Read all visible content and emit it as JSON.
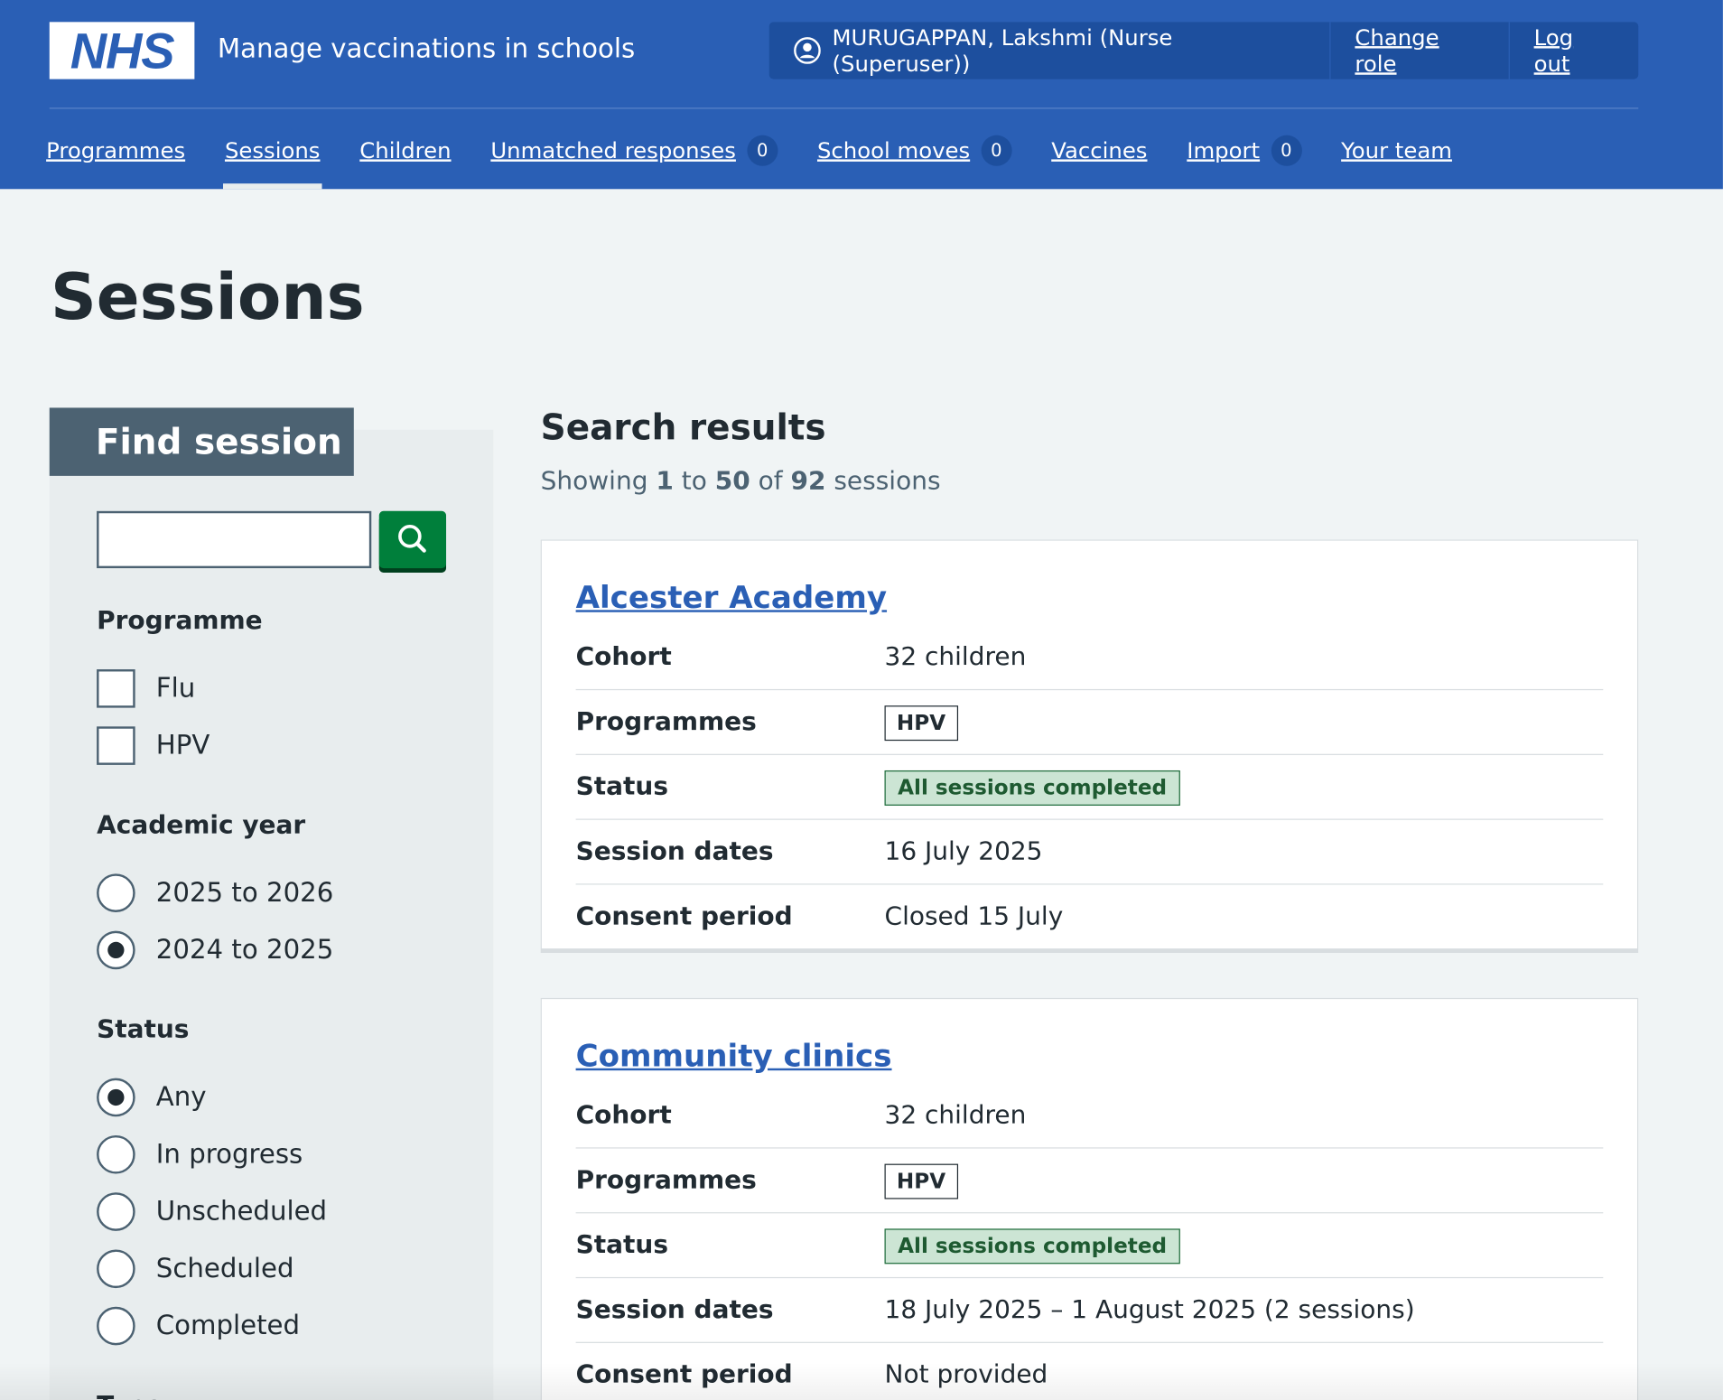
{
  "header": {
    "logo": "NHS",
    "service": "Manage vaccinations in schools",
    "user": "MURUGAPPAN, Lakshmi (Nurse (Superuser))",
    "links": [
      "Change role",
      "Log out"
    ]
  },
  "nav": {
    "items": [
      {
        "label": "Programmes"
      },
      {
        "label": "Sessions",
        "active": true
      },
      {
        "label": "Children"
      },
      {
        "label": "Unmatched responses",
        "count": "0"
      },
      {
        "label": "School moves",
        "count": "0"
      },
      {
        "label": "Vaccines"
      },
      {
        "label": "Import",
        "count": "0"
      },
      {
        "label": "Your team"
      }
    ]
  },
  "page": {
    "title": "Sessions"
  },
  "filter": {
    "heading": "Find session",
    "groups": [
      {
        "legend": "Programme",
        "kind": "checkbox",
        "options": [
          "Flu",
          "HPV"
        ]
      },
      {
        "legend": "Academic year",
        "kind": "radio",
        "options": [
          "2025 to 2026",
          "2024 to 2025"
        ],
        "selected": 1
      },
      {
        "legend": "Status",
        "kind": "radio",
        "options": [
          "Any",
          "In progress",
          "Unscheduled",
          "Scheduled",
          "Completed"
        ],
        "selected": 0
      },
      {
        "legend": "Type"
      }
    ]
  },
  "results": {
    "heading": "Search results",
    "summary": [
      "Showing",
      "1",
      "to",
      "50",
      "of",
      "92",
      "sessions"
    ],
    "cards": [
      {
        "name": "Alcester Academy",
        "rows": [
          {
            "label": "Cohort",
            "value": "32 children"
          },
          {
            "label": "Programmes",
            "tag": "HPV"
          },
          {
            "label": "Status",
            "status": "All sessions completed"
          },
          {
            "label": "Session dates",
            "value": "16 July 2025"
          },
          {
            "label": "Consent period",
            "value": "Closed 15 July"
          }
        ]
      },
      {
        "name": "Community clinics",
        "rows": [
          {
            "label": "Cohort",
            "value": "32 children"
          },
          {
            "label": "Programmes",
            "tag": "HPV"
          },
          {
            "label": "Status",
            "status": "All sessions completed"
          },
          {
            "label": "Session dates",
            "value": "18 July 2025 – 1 August 2025 (2 sessions)"
          },
          {
            "label": "Consent period",
            "value": "Not provided"
          }
        ]
      }
    ]
  }
}
